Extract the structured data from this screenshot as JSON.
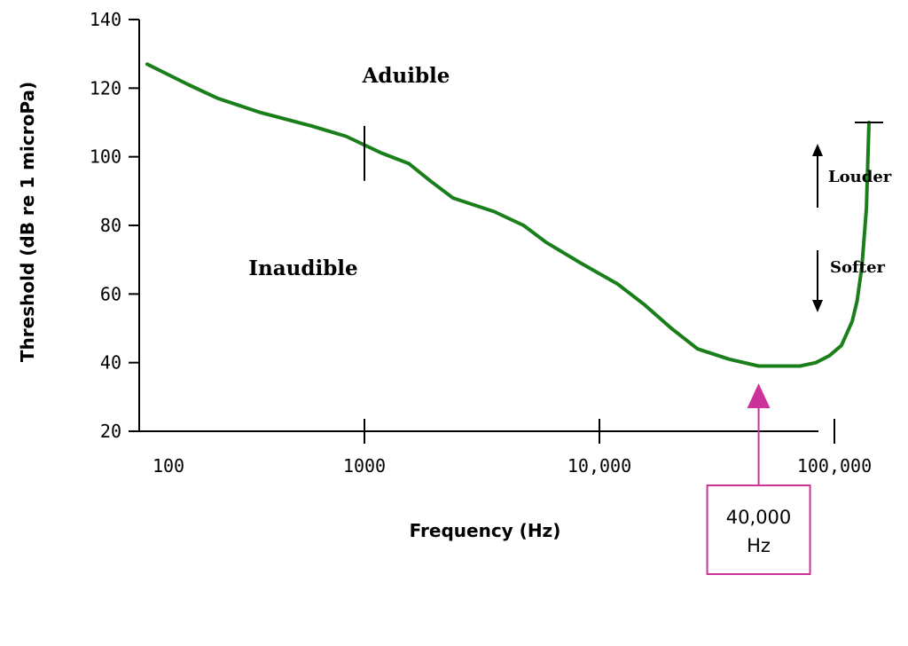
{
  "chart_data": {
    "type": "line",
    "xlabel": "Frequency (Hz)",
    "ylabel": "Threshold (dB re 1 microPa)",
    "x_scale": "log",
    "xlim": [
      100,
      160000
    ],
    "ylim": [
      20,
      140
    ],
    "x_ticks": [
      {
        "value": 100,
        "label": "100"
      },
      {
        "value": 1000,
        "label": "1000"
      },
      {
        "value": 10000,
        "label": "10,000"
      },
      {
        "value": 100000,
        "label": "100,000"
      }
    ],
    "y_ticks": [
      {
        "value": 20,
        "label": "20"
      },
      {
        "value": 40,
        "label": "40"
      },
      {
        "value": 60,
        "label": "60"
      },
      {
        "value": 80,
        "label": "80"
      },
      {
        "value": 100,
        "label": "100"
      },
      {
        "value": 120,
        "label": "120"
      },
      {
        "value": 140,
        "label": "140"
      }
    ],
    "series": [
      {
        "color": "#1a7f1a",
        "x": [
          100,
          150,
          200,
          300,
          500,
          700,
          1000,
          1300,
          1600,
          2000,
          3000,
          4000,
          5000,
          7000,
          10000,
          13000,
          17000,
          22000,
          30000,
          40000,
          50000,
          60000,
          70000,
          80000,
          90000,
          100000,
          105000,
          110000,
          115000,
          118000
        ],
        "y": [
          127,
          121,
          117,
          113,
          109,
          106,
          101,
          98,
          93,
          88,
          84,
          80,
          75,
          69,
          63,
          57,
          50,
          44,
          41,
          39,
          39,
          39,
          40,
          42,
          45,
          52,
          58,
          68,
          85,
          110
        ]
      }
    ],
    "annotations": {
      "above_label": "Aduible",
      "below_label": "Inaudible",
      "louder_label": "Louder",
      "softer_label": "Softer",
      "marker_x": 1000,
      "marker_y_range": [
        93,
        109
      ],
      "cap_y": 110,
      "callout": {
        "x": 40000,
        "line1": "40,000",
        "line2": "Hz",
        "color": "#cc3399"
      }
    }
  }
}
